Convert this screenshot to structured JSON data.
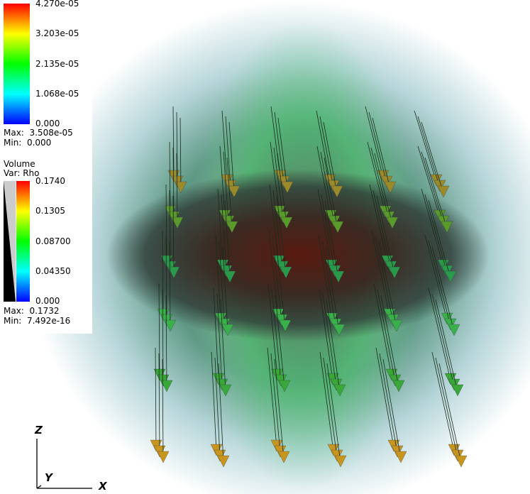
{
  "legends": [
    {
      "ticks": [
        "4.270e-05",
        "3.203e-05",
        "2.135e-05",
        "1.068e-05",
        "0.000"
      ],
      "max": "Max:  3.508e-05",
      "min": "Min:  0.000"
    },
    {
      "title": "Volume",
      "var": "Var: Rho",
      "ticks": [
        "0.1740",
        "0.1305",
        "0.08700",
        "0.04350",
        "0.000"
      ],
      "max": "Max:  0.1732",
      "min": "Min:  7.492e-16"
    }
  ],
  "axes": {
    "z": "Z",
    "y": "Y",
    "x": "X"
  }
}
